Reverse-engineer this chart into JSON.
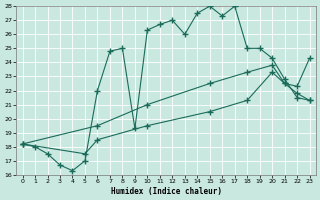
{
  "xlabel": "Humidex (Indice chaleur)",
  "bg_color": "#c9e8e0",
  "grid_color": "#ffffff",
  "line_color": "#1a6b5a",
  "xlim": [
    -0.5,
    23.5
  ],
  "ylim": [
    16,
    28
  ],
  "xticks": [
    0,
    1,
    2,
    3,
    4,
    5,
    6,
    7,
    8,
    9,
    10,
    11,
    12,
    13,
    14,
    15,
    16,
    17,
    18,
    19,
    20,
    21,
    22,
    23
  ],
  "yticks": [
    16,
    17,
    18,
    19,
    20,
    21,
    22,
    23,
    24,
    25,
    26,
    27,
    28
  ],
  "line1_x": [
    0,
    1,
    2,
    3,
    4,
    5,
    6,
    7,
    8,
    9,
    10,
    11,
    12,
    13,
    14,
    15,
    16,
    17,
    18,
    19,
    20,
    21,
    22,
    23
  ],
  "line1_y": [
    18.2,
    18.0,
    17.5,
    16.7,
    16.3,
    17.0,
    22.0,
    24.8,
    25.0,
    19.3,
    26.3,
    26.7,
    27.0,
    26.0,
    27.5,
    28.0,
    27.3,
    28.0,
    25.0,
    25.0,
    24.3,
    22.8,
    21.5,
    21.3
  ],
  "line2_x": [
    0,
    6,
    10,
    15,
    18,
    20,
    21,
    22,
    23
  ],
  "line2_y": [
    18.2,
    19.5,
    21.0,
    22.5,
    23.3,
    23.8,
    22.5,
    22.3,
    24.3
  ],
  "line3_x": [
    0,
    5,
    6,
    10,
    15,
    18,
    20,
    21,
    22,
    23
  ],
  "line3_y": [
    18.2,
    17.5,
    18.5,
    19.5,
    20.5,
    21.3,
    23.3,
    22.5,
    21.8,
    21.3
  ],
  "markersize": 2.5
}
